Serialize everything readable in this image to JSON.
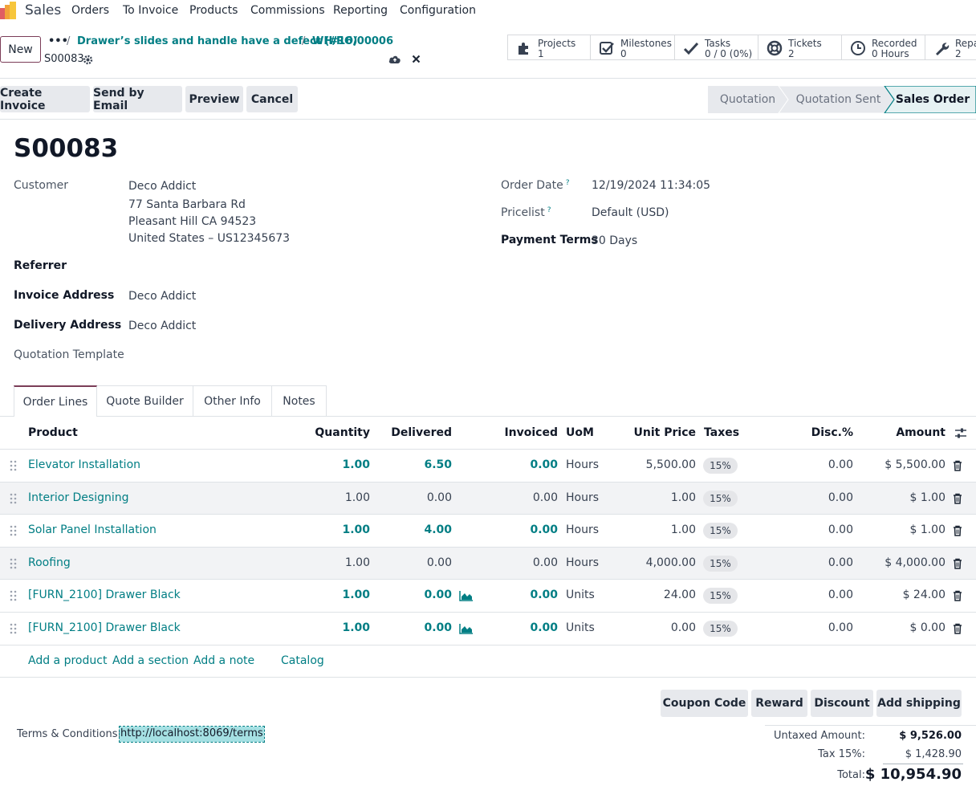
{
  "nav": {
    "app": "Sales",
    "menu": [
      "Orders",
      "To Invoice",
      "Products",
      "Commissions",
      "Reporting",
      "Configuration"
    ]
  },
  "control": {
    "new_label": "New",
    "more": "•••",
    "crumb1": "Drawer’s slides and handle have a defect (#16)",
    "crumb2": "WH/RO/00006",
    "record": "S00083"
  },
  "smart_buttons": [
    {
      "icon": "puzzle-icon",
      "line1": "Projects",
      "line2": "1"
    },
    {
      "icon": "milestone-check-icon",
      "line1": "Milestones",
      "line2": "0"
    },
    {
      "icon": "check-icon",
      "line1": "Tasks",
      "line2": "0 / 0 (0%)"
    },
    {
      "icon": "lifebuoy-icon",
      "line1": "Tickets",
      "line2": "2"
    },
    {
      "icon": "clock-icon",
      "line1": "Recorded",
      "line2": "0 Hours"
    },
    {
      "icon": "wrench-icon",
      "line1": "Repai",
      "line2": "2"
    }
  ],
  "actions": [
    "Create Invoice",
    "Send by Email",
    "Preview",
    "Cancel"
  ],
  "stages": [
    "Quotation",
    "Quotation Sent",
    "Sales Order"
  ],
  "form": {
    "title": "S00083",
    "customer_label": "Customer",
    "customer_name": "Deco Addict",
    "address1": "77 Santa Barbara Rd",
    "address2": "Pleasant Hill CA 94523",
    "address3": "United States – US12345673",
    "referrer_label": "Referrer",
    "invoice_label": "Invoice Address",
    "invoice_value": "Deco Addict",
    "delivery_label": "Delivery Address",
    "delivery_value": "Deco Addict",
    "template_label": "Quotation Template",
    "order_date_label": "Order Date",
    "order_date_value": "12/19/2024 11:34:05",
    "pricelist_label": "Pricelist",
    "pricelist_value": "Default (USD)",
    "payment_label": "Payment Terms",
    "payment_value": "30 Days",
    "help_mark": "?"
  },
  "tabs": [
    "Order Lines",
    "Quote Builder",
    "Other Info",
    "Notes"
  ],
  "table": {
    "headers": {
      "product": "Product",
      "quantity": "Quantity",
      "delivered": "Delivered",
      "invoiced": "Invoiced",
      "uom": "UoM",
      "unit_price": "Unit Price",
      "taxes": "Taxes",
      "disc": "Disc.%",
      "amount": "Amount"
    },
    "rows": [
      {
        "product": "Elevator Installation",
        "qty": "1.00",
        "delivered": "6.50",
        "invoiced": "0.00",
        "uom": "Hours",
        "price": "5,500.00",
        "tax": "15%",
        "disc": "0.00",
        "amount": "$ 5,500.00"
      },
      {
        "product": "Interior Designing",
        "qty": "1.00",
        "delivered": "0.00",
        "invoiced": "0.00",
        "uom": "Hours",
        "price": "1.00",
        "tax": "15%",
        "disc": "0.00",
        "amount": "$ 1.00"
      },
      {
        "product": "Solar Panel Installation",
        "qty": "1.00",
        "delivered": "4.00",
        "invoiced": "0.00",
        "uom": "Hours",
        "price": "1.00",
        "tax": "15%",
        "disc": "0.00",
        "amount": "$ 1.00"
      },
      {
        "product": "Roofing",
        "qty": "1.00",
        "delivered": "0.00",
        "invoiced": "0.00",
        "uom": "Hours",
        "price": "4,000.00",
        "tax": "15%",
        "disc": "0.00",
        "amount": "$ 4,000.00"
      },
      {
        "product": "[FURN_2100] Drawer Black",
        "qty": "1.00",
        "delivered": "0.00",
        "invoiced": "0.00",
        "uom": "Units",
        "price": "24.00",
        "tax": "15%",
        "disc": "0.00",
        "amount": "$ 24.00"
      },
      {
        "product": "[FURN_2100] Drawer Black",
        "qty": "1.00",
        "delivered": "0.00",
        "invoiced": "0.00",
        "uom": "Units",
        "price": "0.00",
        "tax": "15%",
        "disc": "0.00",
        "amount": "$ 0.00"
      }
    ]
  },
  "add_links": [
    "Add a product",
    "Add a section",
    "Add a note",
    "Catalog"
  ],
  "footer_buttons": [
    "Coupon Code",
    "Reward",
    "Discount",
    "Add shipping"
  ],
  "terms": {
    "label": "Terms & Conditions:",
    "link": "http://localhost:8069/terms"
  },
  "totals": {
    "untaxed_label": "Untaxed Amount:",
    "untaxed_value": "$ 9,526.00",
    "tax_label": "Tax 15%:",
    "tax_value": "$ 1,428.90",
    "total_label": "Total:",
    "total_value": "$ 10,954.90"
  },
  "colors": {
    "accent": "#017e84",
    "brand": "#7b3d58"
  }
}
